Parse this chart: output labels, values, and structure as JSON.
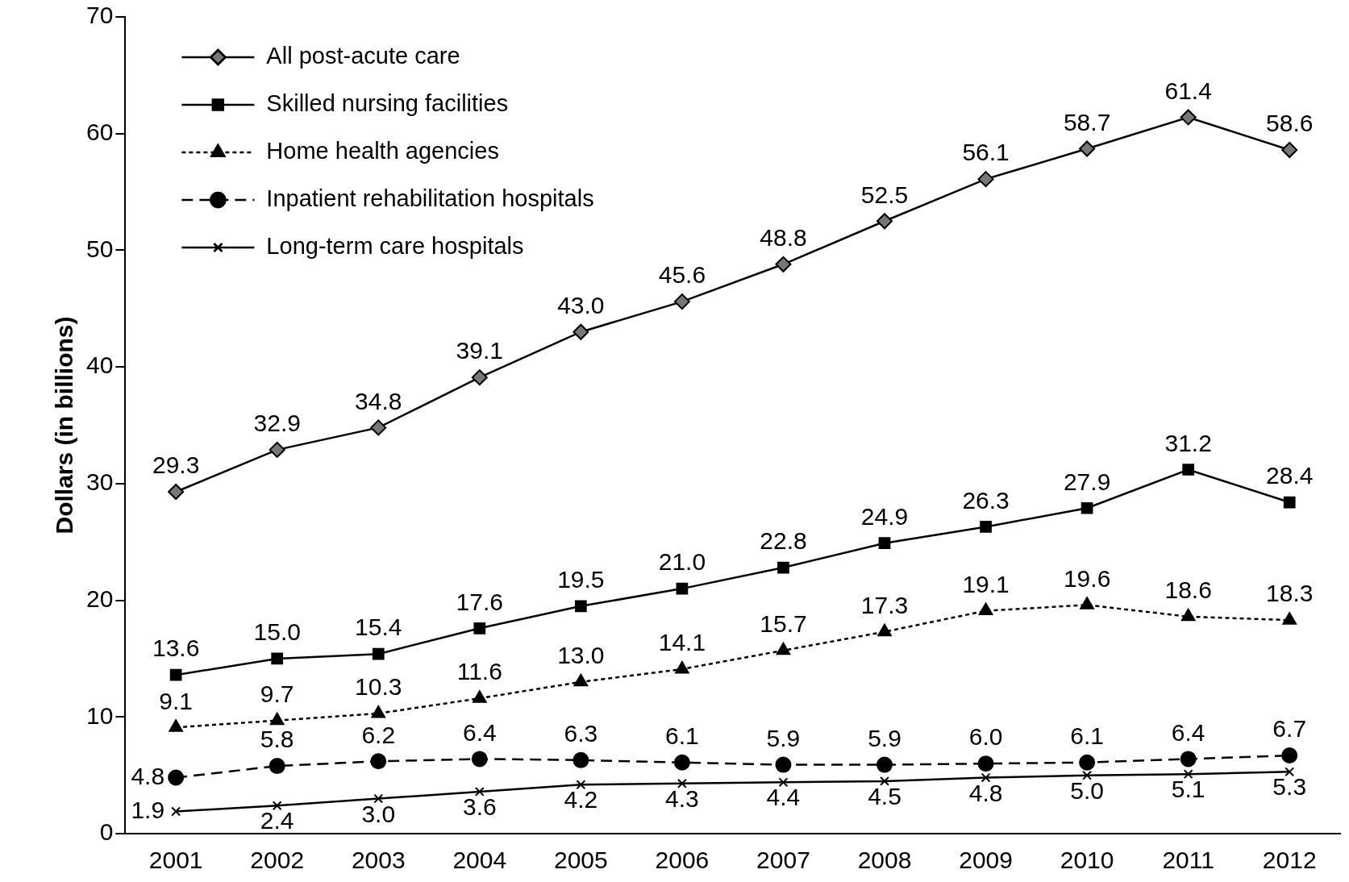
{
  "chart_data": {
    "type": "line",
    "ylabel": "Dollars (in billions)",
    "categories": [
      "2001",
      "2002",
      "2003",
      "2004",
      "2005",
      "2006",
      "2007",
      "2008",
      "2009",
      "2010",
      "2011",
      "2012"
    ],
    "ylim": [
      0,
      70
    ],
    "yticks": [
      0,
      10,
      20,
      30,
      40,
      50,
      60,
      70
    ],
    "grid": false,
    "legend": "top left",
    "series": [
      {
        "name": "All post-acute care",
        "color": "#000000",
        "marker": "diamond",
        "line_style": "solid",
        "values": [
          29.3,
          32.9,
          34.8,
          39.1,
          43.0,
          45.6,
          48.8,
          52.5,
          56.1,
          58.7,
          61.4,
          58.6
        ],
        "value_labels": [
          "29.3",
          "32.9",
          "34.8",
          "39.1",
          "43.0",
          "45.6",
          "48.8",
          "52.5",
          "56.1",
          "58.7",
          "61.4",
          "58.6"
        ]
      },
      {
        "name": "Skilled nursing facilities",
        "color": "#000000",
        "marker": "square",
        "line_style": "solid",
        "values": [
          13.6,
          15.0,
          15.4,
          17.6,
          19.5,
          21.0,
          22.8,
          24.9,
          26.3,
          27.9,
          31.2,
          28.4
        ],
        "value_labels": [
          "13.6",
          "15.0",
          "15.4",
          "17.6",
          "19.5",
          "21.0",
          "22.8",
          "24.9",
          "26.3",
          "27.9",
          "31.2",
          "28.4"
        ]
      },
      {
        "name": "Home health agencies",
        "color": "#000000",
        "marker": "triangle",
        "line_style": "dotted",
        "values": [
          9.1,
          9.7,
          10.3,
          11.6,
          13.0,
          14.1,
          15.7,
          17.3,
          19.1,
          19.6,
          18.6,
          18.3
        ],
        "value_labels": [
          "9.1",
          "9.7",
          "10.3",
          "11.6",
          "13.0",
          "14.1",
          "15.7",
          "17.3",
          "19.1",
          "19.6",
          "18.6",
          "18.3"
        ]
      },
      {
        "name": "Inpatient rehabilitation hospitals",
        "color": "#000000",
        "marker": "circle",
        "line_style": "dashed",
        "values": [
          4.8,
          5.8,
          6.2,
          6.4,
          6.3,
          6.1,
          5.9,
          5.9,
          6.0,
          6.1,
          6.4,
          6.7
        ],
        "value_labels": [
          "4.8",
          "5.8",
          "6.2",
          "6.4",
          "6.3",
          "6.1",
          "5.9",
          "5.9",
          "6.0",
          "6.1",
          "6.4",
          "6.7"
        ]
      },
      {
        "name": "Long-term care hospitals",
        "color": "#000000",
        "marker": "cross",
        "line_style": "solid",
        "values": [
          1.9,
          2.4,
          3.0,
          3.6,
          4.2,
          4.3,
          4.4,
          4.5,
          4.8,
          5.0,
          5.1,
          5.3
        ],
        "value_labels": [
          "1.9",
          "2.4",
          "3.0",
          "3.6",
          "4.2",
          "4.3",
          "4.4",
          "4.5",
          "4.8",
          "5.0",
          "5.1",
          "5.3"
        ]
      }
    ]
  }
}
